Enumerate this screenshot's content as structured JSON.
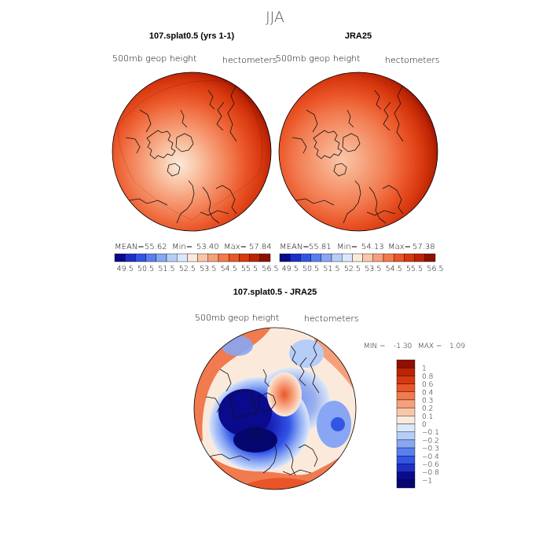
{
  "chart_data": [
    {
      "type": "heatmap",
      "season": "JJA",
      "title": "107.splat0.5 (yrs 1-1)",
      "variable": "500mb geop height",
      "units": "hectometers",
      "stats": {
        "mean_label": "MEAN=",
        "mean": "55.62",
        "min_label": "Min=",
        "min": "53.40",
        "max_label": "Max=",
        "max": "57.84"
      },
      "colorbar": {
        "ticks": [
          "49.5",
          "50.5",
          "51.5",
          "52.5",
          "53.5",
          "54.5",
          "55.5",
          "56.5"
        ],
        "colors": [
          "#0a0a8c",
          "#1e2fc8",
          "#3355e6",
          "#5a7ff0",
          "#88a6f3",
          "#b6cdf8",
          "#dbe8fb",
          "#fbeadb",
          "#f9c7a8",
          "#f6a07a",
          "#f27a4f",
          "#ea5527",
          "#d8380f",
          "#bb2405",
          "#8f0f00"
        ]
      }
    },
    {
      "type": "heatmap",
      "title": "JRA25",
      "variable": "500mb geop height",
      "units": "hectometers",
      "stats": {
        "mean_label": "MEAN=",
        "mean": "55.81",
        "min_label": "Min=",
        "min": "54.13",
        "max_label": "Max=",
        "max": "57.38"
      },
      "colorbar": {
        "ticks": [
          "49.5",
          "50.5",
          "51.5",
          "52.5",
          "53.5",
          "54.5",
          "55.5",
          "56.5"
        ],
        "colors": [
          "#0a0a8c",
          "#1e2fc8",
          "#3355e6",
          "#5a7ff0",
          "#88a6f3",
          "#b6cdf8",
          "#dbe8fb",
          "#fbeadb",
          "#f9c7a8",
          "#f6a07a",
          "#f27a4f",
          "#ea5527",
          "#d8380f",
          "#bb2405",
          "#8f0f00"
        ]
      }
    },
    {
      "type": "heatmap",
      "title": "107.splat0.5 - JRA25",
      "variable": "500mb geop height",
      "units": "hectometers",
      "stats": {
        "min_label": "MIN =",
        "min": "-1.30",
        "max_label": "MAX =",
        "max": "1.09"
      },
      "colorbar": {
        "ticks": [
          "1",
          "0.8",
          "0.6",
          "0.4",
          "0.3",
          "0.2",
          "0.1",
          "0",
          "−0.1",
          "−0.2",
          "−0.3",
          "−0.4",
          "−0.6",
          "−0.8",
          "−1"
        ],
        "colors": [
          "#8f0f00",
          "#bb2405",
          "#d8380f",
          "#ea5527",
          "#f27a4f",
          "#f6a07a",
          "#f9c7a8",
          "#fbeadb",
          "#dbe8fb",
          "#b6cdf8",
          "#88a6f3",
          "#5a7ff0",
          "#3355e6",
          "#1e2fc8",
          "#0a0a8c",
          "#060670"
        ]
      }
    }
  ]
}
